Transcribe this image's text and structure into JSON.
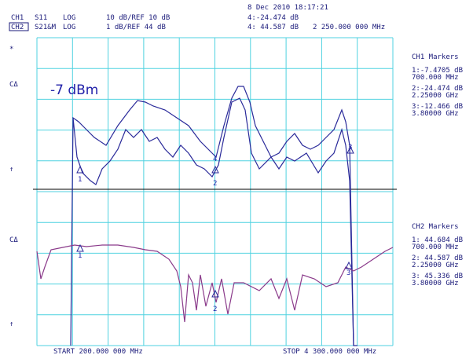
{
  "header": {
    "date_time": "8 Dec 2010  18:17:21",
    "ch1": {
      "label": "CH1",
      "param": "S11",
      "format": "LOG",
      "scale": "10 dB/REF 10 dB",
      "readout": "4:-24.474 dB"
    },
    "ch2": {
      "label": "CH2",
      "param": "S21&M",
      "format": "LOG",
      "scale": "1 dB/REF 44 dB",
      "readout": "4: 44.587 dB",
      "frequency": "2 250.000 000 MHz"
    }
  },
  "left_labels": {
    "star": "*",
    "ch1_ref": "CΔ",
    "ch1_arrow": "↑",
    "ch2_ref": "CΔ",
    "ch2_arrow": "↑"
  },
  "power": "-7 dBm",
  "ch1_markers": {
    "title": "CH1 Markers",
    "items": [
      {
        "value": "1:-7.4705 dB",
        "freq": "700.000 MHz"
      },
      {
        "value": "2:-24.474 dB",
        "freq": "2.25000 GHz"
      },
      {
        "value": "3:-12.466 dB",
        "freq": "3.80000 GHz"
      }
    ]
  },
  "ch2_markers": {
    "title": "CH2 Markers",
    "items": [
      {
        "value": "1: 44.684 dB",
        "freq": "700.000 MHz"
      },
      {
        "value": "2: 44.587 dB",
        "freq": "2.25000 GHz"
      },
      {
        "value": "3: 45.336 dB",
        "freq": "3.80000 GHz"
      }
    ]
  },
  "trace_markers": [
    "1",
    "2",
    "3",
    "4"
  ],
  "footer": {
    "start": "START  200.000 000 MHz",
    "stop": "STOP 4 300.000 000 MHz"
  }
}
